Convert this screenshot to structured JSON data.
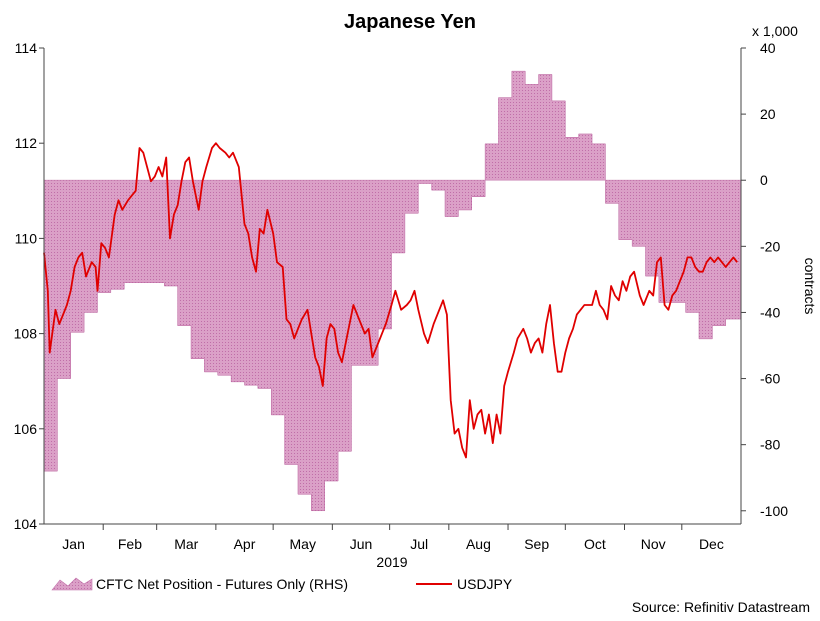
{
  "chart_data": {
    "type": "line",
    "title": "Japanese Yen",
    "xlabel": "2019",
    "months": [
      "Jan",
      "Feb",
      "Mar",
      "Apr",
      "May",
      "Jun",
      "Jul",
      "Aug",
      "Sep",
      "Oct",
      "Nov",
      "Dec"
    ],
    "left_axis": {
      "ylim": [
        104,
        114
      ],
      "ticks": [
        "104",
        "106",
        "108",
        "110",
        "112",
        "114"
      ]
    },
    "right_axis": {
      "unit_note": "x 1,000",
      "ylabel": "contracts",
      "ylim": [
        -104,
        40
      ],
      "ticks": [
        "40",
        "20",
        "0",
        "-20",
        "-40",
        "-60",
        "-80",
        "-100"
      ]
    },
    "legend": {
      "fill_label": "CFTC Net Position - Futures Only (RHS)",
      "line_label": "USDJPY"
    },
    "source": "Source: Refinitiv Datastream",
    "colors": {
      "fill": "#d99ac3",
      "fill_edge": "#b8609c",
      "line": "#e00000"
    },
    "series": [
      {
        "name": "CFTC Net Position - Futures Only (RHS)",
        "axis": "right",
        "style": "step-area",
        "points": [
          [
            1,
            -88
          ],
          [
            8,
            -60
          ],
          [
            15,
            -46
          ],
          [
            22,
            -40
          ],
          [
            29,
            -34
          ],
          [
            36,
            -33
          ],
          [
            43,
            -31
          ],
          [
            50,
            -31
          ],
          [
            57,
            -31
          ],
          [
            64,
            -32
          ],
          [
            71,
            -44
          ],
          [
            78,
            -54
          ],
          [
            85,
            -58
          ],
          [
            92,
            -59
          ],
          [
            99,
            -61
          ],
          [
            106,
            -62
          ],
          [
            113,
            -63
          ],
          [
            120,
            -71
          ],
          [
            127,
            -86
          ],
          [
            134,
            -95
          ],
          [
            141,
            -100
          ],
          [
            148,
            -91
          ],
          [
            155,
            -82
          ],
          [
            162,
            -56
          ],
          [
            169,
            -56
          ],
          [
            176,
            -45
          ],
          [
            183,
            -22
          ],
          [
            190,
            -10
          ],
          [
            197,
            -1
          ],
          [
            204,
            -3
          ],
          [
            211,
            -11
          ],
          [
            218,
            -9
          ],
          [
            225,
            -5
          ],
          [
            232,
            11
          ],
          [
            239,
            25
          ],
          [
            246,
            33
          ],
          [
            253,
            29
          ],
          [
            260,
            32
          ],
          [
            267,
            24
          ],
          [
            274,
            13
          ],
          [
            281,
            14
          ],
          [
            288,
            11
          ],
          [
            295,
            -7
          ],
          [
            302,
            -18
          ],
          [
            309,
            -20
          ],
          [
            316,
            -29
          ],
          [
            323,
            -37
          ],
          [
            330,
            -37
          ],
          [
            337,
            -40
          ],
          [
            344,
            -48
          ],
          [
            351,
            -44
          ],
          [
            358,
            -42
          ],
          [
            365,
            -42
          ]
        ]
      },
      {
        "name": "USDJPY",
        "axis": "left",
        "style": "line",
        "points": [
          [
            1,
            109.7
          ],
          [
            3,
            108.9
          ],
          [
            4,
            107.6
          ],
          [
            7,
            108.5
          ],
          [
            9,
            108.2
          ],
          [
            11,
            108.4
          ],
          [
            13,
            108.6
          ],
          [
            15,
            108.9
          ],
          [
            17,
            109.4
          ],
          [
            19,
            109.6
          ],
          [
            21,
            109.7
          ],
          [
            23,
            109.2
          ],
          [
            26,
            109.5
          ],
          [
            28,
            109.4
          ],
          [
            29,
            108.9
          ],
          [
            31,
            109.9
          ],
          [
            33,
            109.8
          ],
          [
            35,
            109.6
          ],
          [
            38,
            110.5
          ],
          [
            40,
            110.8
          ],
          [
            42,
            110.6
          ],
          [
            45,
            110.8
          ],
          [
            47,
            110.9
          ],
          [
            49,
            111.0
          ],
          [
            51,
            111.9
          ],
          [
            53,
            111.8
          ],
          [
            55,
            111.5
          ],
          [
            57,
            111.2
          ],
          [
            59,
            111.3
          ],
          [
            61,
            111.5
          ],
          [
            63,
            111.3
          ],
          [
            65,
            111.7
          ],
          [
            67,
            110.0
          ],
          [
            69,
            110.5
          ],
          [
            71,
            110.7
          ],
          [
            73,
            111.2
          ],
          [
            75,
            111.6
          ],
          [
            77,
            111.7
          ],
          [
            79,
            111.2
          ],
          [
            82,
            110.6
          ],
          [
            84,
            111.2
          ],
          [
            86,
            111.5
          ],
          [
            89,
            111.9
          ],
          [
            91,
            112.0
          ],
          [
            93,
            111.9
          ],
          [
            96,
            111.8
          ],
          [
            98,
            111.7
          ],
          [
            100,
            111.8
          ],
          [
            103,
            111.5
          ],
          [
            106,
            110.3
          ],
          [
            108,
            110.1
          ],
          [
            110,
            109.6
          ],
          [
            112,
            109.3
          ],
          [
            114,
            110.2
          ],
          [
            116,
            110.1
          ],
          [
            118,
            110.6
          ],
          [
            121,
            110.1
          ],
          [
            123,
            109.5
          ],
          [
            126,
            109.4
          ],
          [
            128,
            108.3
          ],
          [
            130,
            108.2
          ],
          [
            132,
            107.9
          ],
          [
            134,
            108.1
          ],
          [
            136,
            108.3
          ],
          [
            139,
            108.5
          ],
          [
            141,
            108.0
          ],
          [
            143,
            107.5
          ],
          [
            145,
            107.3
          ],
          [
            147,
            106.9
          ],
          [
            149,
            107.9
          ],
          [
            151,
            108.2
          ],
          [
            153,
            108.1
          ],
          [
            155,
            107.6
          ],
          [
            157,
            107.4
          ],
          [
            160,
            108.0
          ],
          [
            163,
            108.6
          ],
          [
            165,
            108.4
          ],
          [
            167,
            108.2
          ],
          [
            169,
            108.0
          ],
          [
            171,
            108.1
          ],
          [
            173,
            107.5
          ],
          [
            176,
            107.8
          ],
          [
            178,
            108.0
          ],
          [
            180,
            108.2
          ],
          [
            183,
            108.6
          ],
          [
            185,
            108.9
          ],
          [
            188,
            108.5
          ],
          [
            191,
            108.6
          ],
          [
            193,
            108.7
          ],
          [
            195,
            108.9
          ],
          [
            197,
            108.5
          ],
          [
            200,
            108.0
          ],
          [
            202,
            107.8
          ],
          [
            205,
            108.2
          ],
          [
            207,
            108.4
          ],
          [
            210,
            108.7
          ],
          [
            212,
            108.4
          ],
          [
            214,
            106.6
          ],
          [
            216,
            105.9
          ],
          [
            218,
            106.0
          ],
          [
            220,
            105.6
          ],
          [
            222,
            105.4
          ],
          [
            224,
            106.6
          ],
          [
            226,
            106.0
          ],
          [
            228,
            106.3
          ],
          [
            230,
            106.4
          ],
          [
            232,
            105.9
          ],
          [
            234,
            106.3
          ],
          [
            236,
            105.7
          ],
          [
            238,
            106.3
          ],
          [
            240,
            105.9
          ],
          [
            242,
            106.9
          ],
          [
            244,
            107.2
          ],
          [
            247,
            107.6
          ],
          [
            249,
            107.9
          ],
          [
            252,
            108.1
          ],
          [
            254,
            107.9
          ],
          [
            256,
            107.6
          ],
          [
            258,
            107.8
          ],
          [
            260,
            107.9
          ],
          [
            262,
            107.6
          ],
          [
            264,
            108.2
          ],
          [
            266,
            108.6
          ],
          [
            268,
            107.8
          ],
          [
            270,
            107.2
          ],
          [
            272,
            107.2
          ],
          [
            274,
            107.6
          ],
          [
            276,
            107.9
          ],
          [
            278,
            108.1
          ],
          [
            280,
            108.4
          ],
          [
            282,
            108.5
          ],
          [
            284,
            108.6
          ],
          [
            286,
            108.6
          ],
          [
            288,
            108.6
          ],
          [
            290,
            108.9
          ],
          [
            292,
            108.6
          ],
          [
            294,
            108.5
          ],
          [
            296,
            108.3
          ],
          [
            298,
            109.0
          ],
          [
            300,
            108.8
          ],
          [
            302,
            108.7
          ],
          [
            304,
            109.1
          ],
          [
            306,
            108.9
          ],
          [
            308,
            109.2
          ],
          [
            310,
            109.3
          ],
          [
            313,
            108.8
          ],
          [
            315,
            108.6
          ],
          [
            318,
            108.9
          ],
          [
            320,
            108.8
          ],
          [
            322,
            109.5
          ],
          [
            324,
            109.6
          ],
          [
            326,
            108.6
          ],
          [
            328,
            108.5
          ],
          [
            330,
            108.8
          ],
          [
            332,
            108.9
          ],
          [
            334,
            109.1
          ],
          [
            336,
            109.3
          ],
          [
            338,
            109.6
          ],
          [
            340,
            109.6
          ],
          [
            342,
            109.4
          ],
          [
            344,
            109.3
          ],
          [
            346,
            109.3
          ],
          [
            348,
            109.5
          ],
          [
            350,
            109.6
          ],
          [
            352,
            109.5
          ],
          [
            354,
            109.6
          ],
          [
            356,
            109.5
          ],
          [
            358,
            109.4
          ],
          [
            360,
            109.5
          ],
          [
            362,
            109.6
          ],
          [
            364,
            109.5
          ]
        ]
      }
    ]
  }
}
